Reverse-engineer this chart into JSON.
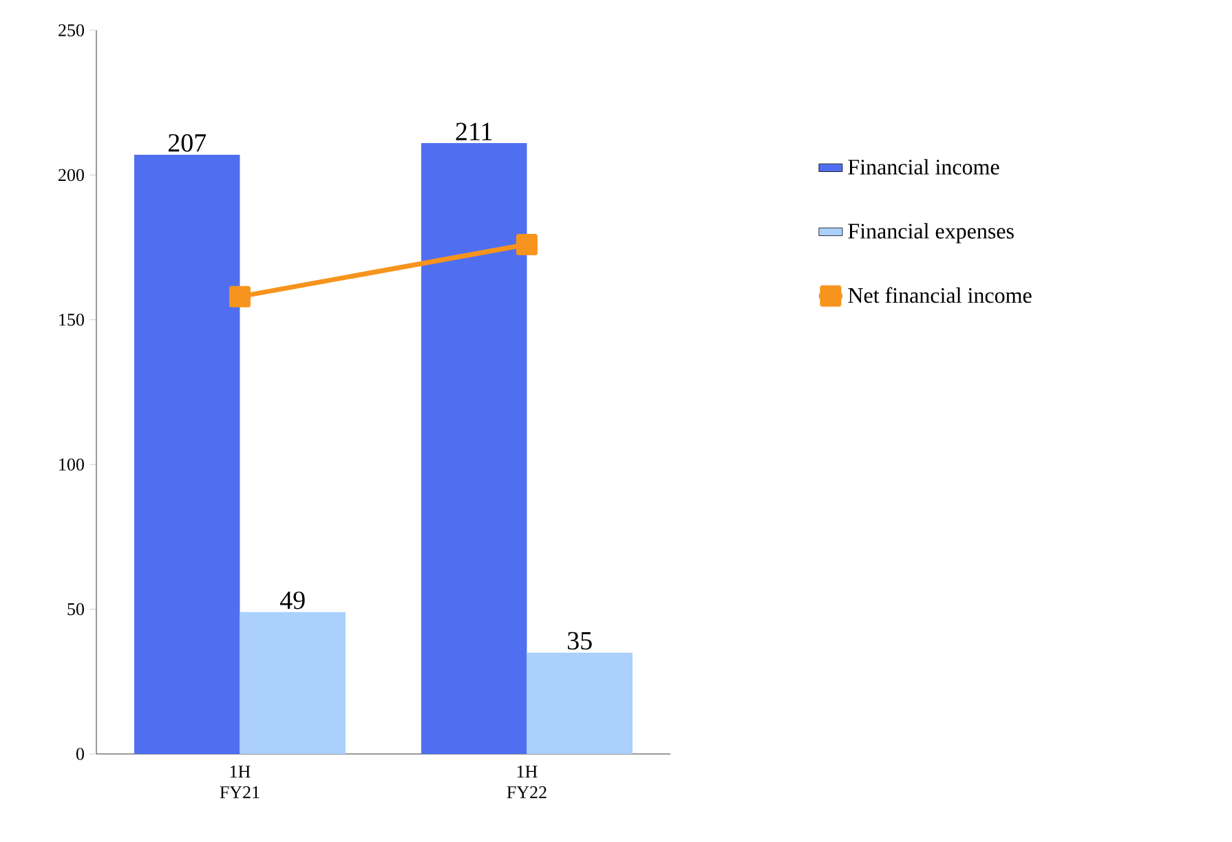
{
  "chart_data": {
    "type": "bar",
    "categories": [
      "1H FY21",
      "1H FY22"
    ],
    "series": [
      {
        "name": "Financial income",
        "color": "#4f6ff0",
        "values": [
          207,
          211
        ],
        "value_labels": [
          "207",
          "211"
        ]
      },
      {
        "name": "Financial expenses",
        "color": "#aad0fb",
        "values": [
          49,
          35
        ],
        "value_labels": [
          "49",
          "35"
        ]
      },
      {
        "name": "Net financial income",
        "type": "line",
        "color": "#f7941d",
        "values": [
          158,
          176
        ],
        "marker": "square"
      }
    ],
    "ylim": [
      0,
      250
    ],
    "yticks": [
      0,
      50,
      100,
      150,
      200,
      250
    ],
    "grid": false,
    "legend": "right"
  }
}
